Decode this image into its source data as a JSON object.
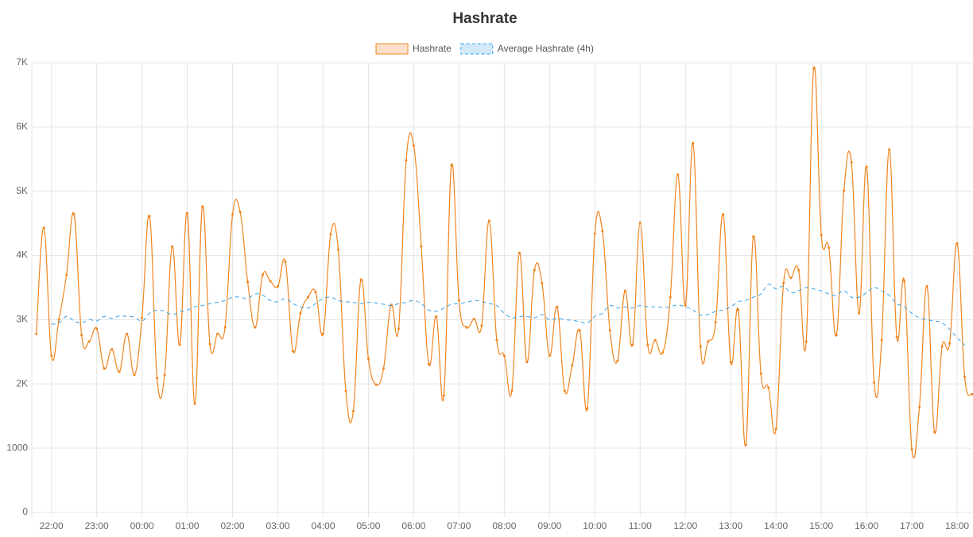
{
  "chart_data": {
    "type": "line",
    "title": "Hashrate",
    "x": [
      "21:40",
      "21:50",
      "22:00",
      "22:10",
      "22:20",
      "22:30",
      "22:40",
      "22:50",
      "23:00",
      "23:10",
      "23:20",
      "23:30",
      "23:40",
      "23:50",
      "00:00",
      "00:10",
      "00:20",
      "00:30",
      "00:40",
      "00:50",
      "01:00",
      "01:10",
      "01:20",
      "01:30",
      "01:40",
      "01:50",
      "02:00",
      "02:10",
      "02:20",
      "02:30",
      "02:40",
      "02:50",
      "03:00",
      "03:10",
      "03:20",
      "03:30",
      "03:40",
      "03:50",
      "04:00",
      "04:10",
      "04:20",
      "04:30",
      "04:40",
      "04:50",
      "05:00",
      "05:10",
      "05:20",
      "05:30",
      "05:40",
      "05:50",
      "06:00",
      "06:10",
      "06:20",
      "06:30",
      "06:40",
      "06:50",
      "07:00",
      "07:10",
      "07:20",
      "07:30",
      "07:40",
      "07:50",
      "08:00",
      "08:10",
      "08:20",
      "08:30",
      "08:40",
      "08:50",
      "09:00",
      "09:10",
      "09:20",
      "09:30",
      "09:40",
      "09:50",
      "10:00",
      "10:10",
      "10:20",
      "10:30",
      "10:40",
      "10:50",
      "11:00",
      "11:10",
      "11:20",
      "11:30",
      "11:40",
      "11:50",
      "12:00",
      "12:10",
      "12:20",
      "12:30",
      "12:40",
      "12:50",
      "13:00",
      "13:10",
      "13:20",
      "13:30",
      "13:40",
      "13:50",
      "14:00",
      "14:10",
      "14:20",
      "14:30",
      "14:40",
      "14:50",
      "15:00",
      "15:10",
      "15:20",
      "15:30",
      "15:40",
      "15:50",
      "16:00",
      "16:10",
      "16:20",
      "16:30",
      "16:40",
      "16:50",
      "17:00",
      "17:10",
      "17:20",
      "17:30",
      "17:40",
      "17:50",
      "18:00",
      "18:10",
      "18:20"
    ],
    "series": [
      {
        "name": "Hashrate",
        "color": "#f0851f",
        "fill": "#fde0cc",
        "dashed": false,
        "points": true,
        "values": [
          2780,
          4430,
          2440,
          3000,
          3700,
          4640,
          2760,
          2660,
          2860,
          2240,
          2540,
          2190,
          2780,
          2140,
          3030,
          4610,
          2090,
          2140,
          4140,
          2610,
          4660,
          1690,
          4760,
          2620,
          2780,
          2880,
          4640,
          4680,
          3590,
          2880,
          3700,
          3600,
          3520,
          3900,
          2510,
          3100,
          3350,
          3430,
          2780,
          4330,
          4090,
          1890,
          1580,
          3620,
          2390,
          1990,
          2240,
          3230,
          2860,
          5480,
          5710,
          4140,
          2310,
          3050,
          1820,
          5400,
          3300,
          2880,
          3010,
          2910,
          4540,
          2680,
          2440,
          1890,
          4040,
          2340,
          3770,
          3570,
          2440,
          3200,
          1890,
          2290,
          2830,
          1620,
          4340,
          4380,
          2830,
          2360,
          3450,
          2610,
          4510,
          2610,
          2680,
          2490,
          3350,
          5260,
          3220,
          5750,
          2580,
          2660,
          2960,
          4640,
          2340,
          3150,
          1050,
          4290,
          2160,
          1940,
          1300,
          3570,
          3650,
          3770,
          2660,
          6910,
          4320,
          4120,
          2760,
          5010,
          5450,
          3100,
          5380,
          2020,
          2680,
          5650,
          2730,
          3600,
          980,
          1640,
          3520,
          1250,
          2580,
          2630,
          4190,
          2110,
          1840
        ]
      },
      {
        "name": "Average Hashrate (4h)",
        "color": "#36a2eb",
        "fill": "#d2e9f9",
        "dashed": true,
        "points": false,
        "values": [
          null,
          null,
          2930,
          2950,
          3050,
          2980,
          2950,
          3000,
          2980,
          3050,
          3020,
          3060,
          3050,
          3040,
          2980,
          3100,
          3150,
          3130,
          3080,
          3120,
          3150,
          3200,
          3220,
          3250,
          3270,
          3300,
          3350,
          3350,
          3330,
          3400,
          3380,
          3300,
          3280,
          3330,
          3250,
          3200,
          3180,
          3250,
          3330,
          3350,
          3300,
          3280,
          3270,
          3250,
          3270,
          3260,
          3240,
          3220,
          3250,
          3270,
          3300,
          3250,
          3150,
          3130,
          3180,
          3240,
          3250,
          3270,
          3300,
          3280,
          3250,
          3220,
          3100,
          3030,
          3050,
          3050,
          3030,
          3080,
          3000,
          3020,
          3000,
          2990,
          2970,
          2950,
          3050,
          3100,
          3220,
          3180,
          3200,
          3180,
          3220,
          3200,
          3200,
          3190,
          3200,
          3230,
          3200,
          3150,
          3070,
          3080,
          3130,
          3150,
          3200,
          3280,
          3300,
          3350,
          3400,
          3550,
          3480,
          3520,
          3420,
          3450,
          3500,
          3480,
          3450,
          3400,
          3380,
          3450,
          3350,
          3350,
          3420,
          3500,
          3450,
          3380,
          3250,
          3200,
          3100,
          3030,
          3000,
          2980,
          2950,
          2850,
          2720,
          2600,
          null
        ]
      }
    ],
    "xlim": [
      "21:34",
      "18:21"
    ],
    "xticks": [
      "22:00",
      "23:00",
      "00:00",
      "01:00",
      "02:00",
      "03:00",
      "04:00",
      "05:00",
      "06:00",
      "07:00",
      "08:00",
      "09:00",
      "10:00",
      "11:00",
      "12:00",
      "13:00",
      "14:00",
      "15:00",
      "16:00",
      "17:00",
      "18:00"
    ],
    "ylim": [
      0,
      7000
    ],
    "yticks": [
      0,
      1000,
      {
        "value": 2000,
        "label": "2K"
      },
      {
        "value": 3000,
        "label": "3K"
      },
      {
        "value": 4000,
        "label": "4K"
      },
      {
        "value": 5000,
        "label": "5K"
      },
      {
        "value": 6000,
        "label": "6K"
      },
      {
        "value": 7000,
        "label": "7K"
      }
    ],
    "grid": true,
    "legend": "top"
  }
}
